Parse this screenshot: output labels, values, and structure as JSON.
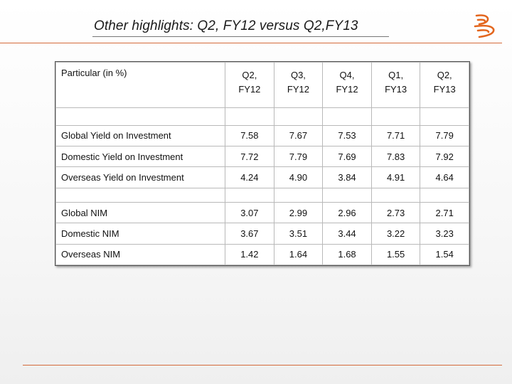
{
  "slide": {
    "title": "Other highlights: Q2, FY12 versus Q2,FY13"
  },
  "logo": {
    "icon": "bank-of-baroda-logo-icon",
    "color": "#e3661e"
  },
  "table": {
    "header_label": "Particular (in %)",
    "columns": [
      {
        "q": "Q2,",
        "fy": "FY12"
      },
      {
        "q": "Q3,",
        "fy": "FY12"
      },
      {
        "q": "Q4,",
        "fy": "FY12"
      },
      {
        "q": "Q1,",
        "fy": "FY13"
      },
      {
        "q": "Q2,",
        "fy": "FY13"
      }
    ],
    "rows": [
      {
        "label": "Global Yield on Investment",
        "values": [
          "7.58",
          "7.67",
          "7.53",
          "7.71",
          "7.79"
        ]
      },
      {
        "label": "Domestic Yield on Investment",
        "values": [
          "7.72",
          "7.79",
          "7.69",
          "7.83",
          "7.92"
        ]
      },
      {
        "label": "Overseas Yield on Investment",
        "values": [
          "4.24",
          "4.90",
          "3.84",
          "4.91",
          "4.64"
        ]
      },
      {
        "label": "Global NIM",
        "values": [
          "3.07",
          "2.99",
          "2.96",
          "2.73",
          "2.71"
        ]
      },
      {
        "label": "Domestic NIM",
        "values": [
          "3.67",
          "3.51",
          "3.44",
          "3.22",
          "3.23"
        ]
      },
      {
        "label": "Overseas NIM",
        "values": [
          "1.42",
          "1.64",
          "1.68",
          "1.55",
          "1.54"
        ]
      }
    ]
  }
}
